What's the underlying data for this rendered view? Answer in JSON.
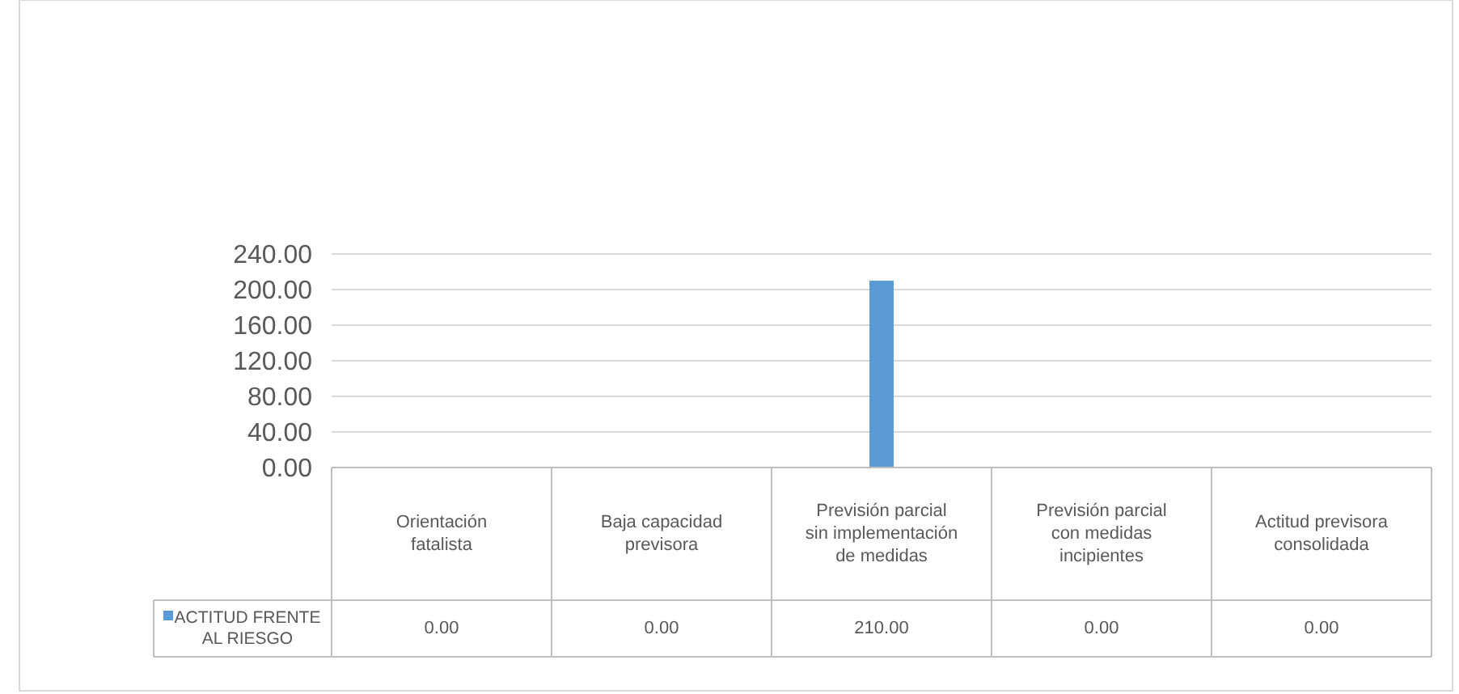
{
  "chart_data": {
    "type": "bar",
    "categories": [
      "Orientación fatalista",
      "Baja capacidad previsora",
      "Previsión parcial sin implementación de medidas",
      "Previsión parcial con medidas incipientes",
      "Actitud previsora consolidada"
    ],
    "series": [
      {
        "name": "ACTITUD FRENTE AL RIESGO",
        "color": "#5b9bd5",
        "values": [
          0,
          0,
          210,
          0,
          0
        ],
        "value_labels": [
          "0.00",
          "0.00",
          "210.00",
          "0.00",
          "0.00"
        ]
      }
    ],
    "ylim": [
      0,
      240
    ],
    "yticks": [
      {
        "value": 0,
        "label": "0.00"
      },
      {
        "value": 40,
        "label": "40.00"
      },
      {
        "value": 80,
        "label": "80.00"
      },
      {
        "value": 120,
        "label": "120.00"
      },
      {
        "value": 160,
        "label": "160.00"
      },
      {
        "value": 200,
        "label": "200.00"
      },
      {
        "value": 240,
        "label": "240.00"
      }
    ],
    "grid": "y",
    "legend": "bottom"
  }
}
